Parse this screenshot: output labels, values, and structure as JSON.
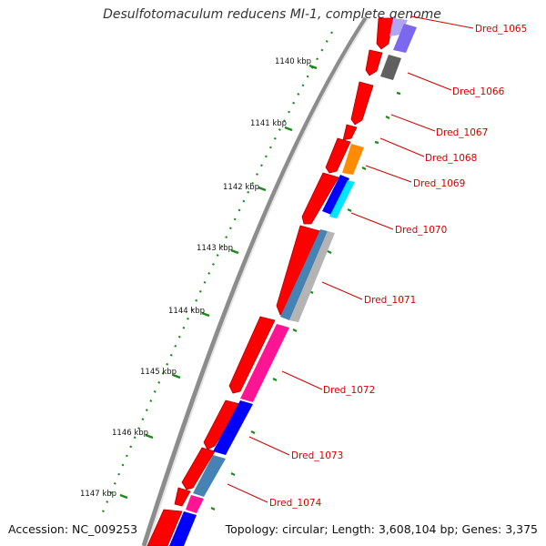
{
  "title": "Desulfotomaculum reducens MI-1, complete genome",
  "accession": "Accession: NC_009253",
  "topology": "Topology: circular; Length: 3,608,104 bp; Genes: 3,375",
  "kbp_labels": [
    "1140 kbp",
    "1141 kbp",
    "1142 kbp",
    "1143 kbp",
    "1144 kbp",
    "1145 kbp",
    "1146 kbp",
    "1147 kbp"
  ],
  "gene_labels": [
    "Dred_1065",
    "Dred_1066",
    "Dred_1067",
    "Dred_1068",
    "Dred_1069",
    "Dred_1070",
    "Dred_1071",
    "Dred_1072",
    "Dred_1073",
    "Dred_1074"
  ],
  "colors": {
    "forward_cds": "#ff0000",
    "ticks": "#1a8a1a",
    "label": "#d40000",
    "backbone": "#8c8c8c",
    "magenta": "#ff1493",
    "blue": "#0000ff",
    "steelblue": "#4682b4",
    "cyan": "#00e5ff",
    "orange": "#ff8c00",
    "gray": "#606060",
    "lavender": "#7b68ee"
  }
}
